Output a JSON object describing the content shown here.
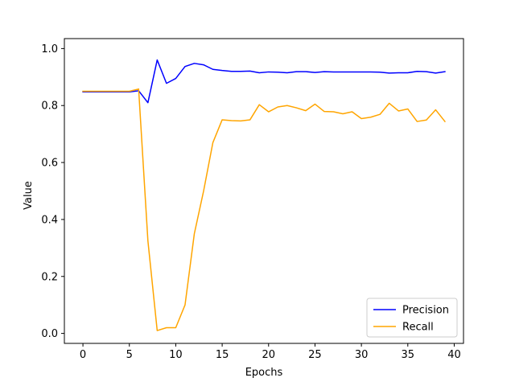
{
  "chart_data": {
    "type": "line",
    "title": "",
    "xlabel": "Epochs",
    "ylabel": "Value",
    "xlim": [
      -2,
      41
    ],
    "ylim": [
      -0.035,
      1.035
    ],
    "xticks": [
      0,
      5,
      10,
      15,
      20,
      25,
      30,
      35,
      40
    ],
    "yticks": [
      0.0,
      0.2,
      0.4,
      0.6,
      0.8,
      1.0
    ],
    "grid": false,
    "legend_position": "bottom-right",
    "x": [
      0,
      1,
      2,
      3,
      4,
      5,
      6,
      7,
      8,
      9,
      10,
      11,
      12,
      13,
      14,
      15,
      16,
      17,
      18,
      19,
      20,
      21,
      22,
      23,
      24,
      25,
      26,
      27,
      28,
      29,
      30,
      31,
      32,
      33,
      34,
      35,
      36,
      37,
      38,
      39
    ],
    "series": [
      {
        "name": "Precision",
        "color": "#0000ff",
        "values": [
          0.848,
          0.848,
          0.848,
          0.848,
          0.848,
          0.848,
          0.852,
          0.81,
          0.96,
          0.878,
          0.895,
          0.937,
          0.948,
          0.943,
          0.927,
          0.923,
          0.92,
          0.92,
          0.921,
          0.915,
          0.918,
          0.917,
          0.915,
          0.919,
          0.919,
          0.916,
          0.919,
          0.918,
          0.918,
          0.918,
          0.918,
          0.918,
          0.917,
          0.914,
          0.915,
          0.915,
          0.92,
          0.919,
          0.914,
          0.919
        ]
      },
      {
        "name": "Recall",
        "color": "#ffa500",
        "values": [
          0.85,
          0.85,
          0.85,
          0.85,
          0.85,
          0.85,
          0.858,
          0.325,
          0.01,
          0.02,
          0.02,
          0.1,
          0.35,
          0.5,
          0.67,
          0.75,
          0.747,
          0.746,
          0.75,
          0.803,
          0.778,
          0.795,
          0.8,
          0.792,
          0.782,
          0.805,
          0.779,
          0.778,
          0.771,
          0.778,
          0.754,
          0.759,
          0.769,
          0.808,
          0.781,
          0.788,
          0.744,
          0.749,
          0.785,
          0.744
        ]
      }
    ]
  }
}
